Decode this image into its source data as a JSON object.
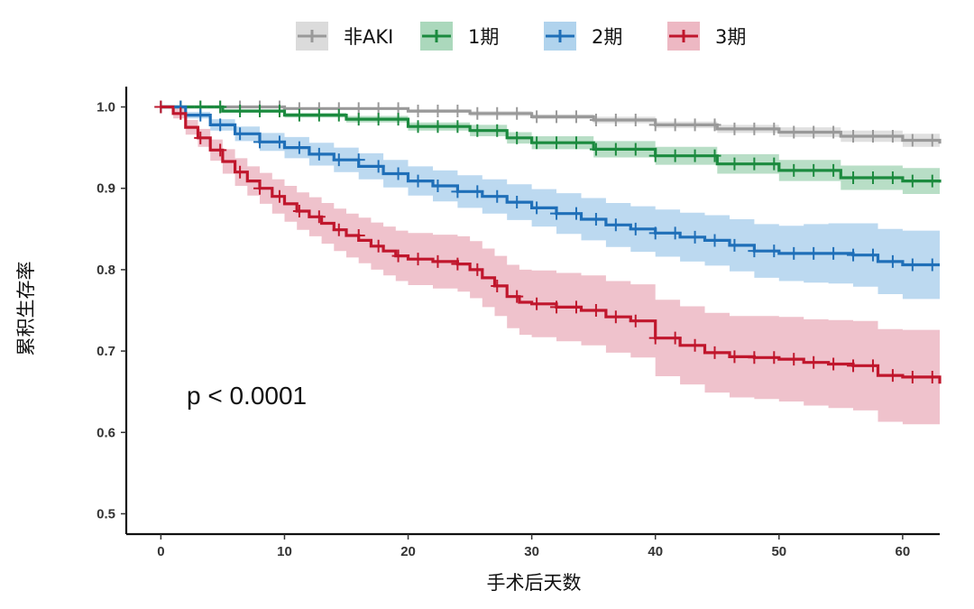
{
  "chart_data": {
    "type": "line",
    "xlabel": "手术后天数",
    "ylabel": "累积生存率",
    "xlim": [
      -2.8,
      63
    ],
    "ylim": [
      0.475,
      1.025
    ],
    "x_ticks": [
      "0",
      "10",
      "20",
      "30",
      "40",
      "50",
      "60"
    ],
    "y_ticks": [
      "0.5",
      "0.6",
      "0.7",
      "0.8",
      "0.9",
      "1.0"
    ],
    "legend_position": "top",
    "annotation": "p < 0.0001",
    "series": [
      {
        "name": "非AKI",
        "color": "#999999",
        "fill": "#cccccc",
        "x": [
          0,
          10,
          20,
          25,
          30,
          35,
          40,
          45,
          50,
          55,
          60,
          63
        ],
        "y": [
          1.0,
          0.998,
          0.995,
          0.992,
          0.988,
          0.984,
          0.978,
          0.973,
          0.969,
          0.964,
          0.959,
          0.955
        ],
        "lower": [
          1.0,
          0.997,
          0.993,
          0.989,
          0.985,
          0.98,
          0.974,
          0.968,
          0.963,
          0.957,
          0.951,
          0.946
        ],
        "upper": [
          1.0,
          0.999,
          0.997,
          0.995,
          0.991,
          0.988,
          0.982,
          0.978,
          0.975,
          0.971,
          0.967,
          0.964
        ]
      },
      {
        "name": "1期",
        "color": "#1b8a3e",
        "fill": "#88c8a0",
        "x": [
          0,
          5,
          10,
          15,
          20,
          25,
          28,
          30,
          35,
          40,
          45,
          50,
          55,
          60,
          63
        ],
        "y": [
          1.0,
          0.995,
          0.99,
          0.985,
          0.976,
          0.971,
          0.962,
          0.956,
          0.948,
          0.94,
          0.93,
          0.922,
          0.913,
          0.909,
          0.907
        ],
        "lower": [
          1.0,
          0.993,
          0.987,
          0.981,
          0.971,
          0.964,
          0.955,
          0.948,
          0.938,
          0.929,
          0.918,
          0.909,
          0.898,
          0.893,
          0.889
        ],
        "upper": [
          1.0,
          0.997,
          0.993,
          0.989,
          0.981,
          0.978,
          0.969,
          0.964,
          0.958,
          0.951,
          0.942,
          0.935,
          0.928,
          0.925,
          0.925
        ]
      },
      {
        "name": "2期",
        "color": "#1f6fb8",
        "fill": "#8fc0e6",
        "x": [
          0,
          2,
          4,
          6,
          8,
          10,
          12,
          14,
          16,
          18,
          20,
          22,
          24,
          26,
          28,
          30,
          32,
          34,
          36,
          38,
          40,
          42,
          44,
          46,
          48,
          50,
          52,
          54,
          56,
          58,
          60,
          63
        ],
        "y": [
          1.0,
          0.99,
          0.978,
          0.967,
          0.957,
          0.95,
          0.942,
          0.935,
          0.927,
          0.918,
          0.909,
          0.903,
          0.896,
          0.89,
          0.883,
          0.876,
          0.869,
          0.862,
          0.855,
          0.85,
          0.845,
          0.84,
          0.836,
          0.83,
          0.823,
          0.82,
          0.82,
          0.82,
          0.818,
          0.81,
          0.806,
          0.806
        ],
        "lower": [
          1.0,
          0.986,
          0.971,
          0.958,
          0.946,
          0.937,
          0.928,
          0.92,
          0.911,
          0.901,
          0.891,
          0.884,
          0.876,
          0.869,
          0.861,
          0.853,
          0.844,
          0.836,
          0.828,
          0.822,
          0.816,
          0.81,
          0.805,
          0.798,
          0.79,
          0.786,
          0.784,
          0.783,
          0.779,
          0.77,
          0.764,
          0.762
        ],
        "upper": [
          1.0,
          0.994,
          0.985,
          0.976,
          0.968,
          0.963,
          0.956,
          0.95,
          0.943,
          0.935,
          0.927,
          0.922,
          0.916,
          0.911,
          0.905,
          0.899,
          0.894,
          0.888,
          0.882,
          0.878,
          0.874,
          0.87,
          0.867,
          0.862,
          0.856,
          0.854,
          0.856,
          0.857,
          0.857,
          0.85,
          0.848,
          0.85
        ]
      },
      {
        "name": "3期",
        "color": "#c0162c",
        "fill": "#e59aaa",
        "x": [
          0,
          1,
          2,
          3,
          4,
          5,
          6,
          7,
          8,
          9,
          10,
          11,
          12,
          13,
          14,
          15,
          16,
          17,
          18,
          19,
          20,
          22,
          24,
          25,
          26,
          27,
          28,
          29,
          30,
          32,
          34,
          36,
          38,
          40,
          42,
          44,
          46,
          48,
          50,
          52,
          54,
          56,
          58,
          60,
          63
        ],
        "y": [
          1.0,
          0.992,
          0.975,
          0.962,
          0.947,
          0.933,
          0.92,
          0.909,
          0.9,
          0.89,
          0.881,
          0.872,
          0.865,
          0.857,
          0.849,
          0.842,
          0.836,
          0.829,
          0.823,
          0.817,
          0.813,
          0.81,
          0.807,
          0.8,
          0.79,
          0.78,
          0.767,
          0.76,
          0.758,
          0.754,
          0.75,
          0.742,
          0.737,
          0.716,
          0.707,
          0.698,
          0.693,
          0.692,
          0.69,
          0.686,
          0.684,
          0.682,
          0.67,
          0.668,
          0.66
        ],
        "lower": [
          1.0,
          0.986,
          0.966,
          0.951,
          0.934,
          0.918,
          0.903,
          0.891,
          0.881,
          0.869,
          0.859,
          0.849,
          0.841,
          0.832,
          0.823,
          0.815,
          0.808,
          0.8,
          0.793,
          0.786,
          0.781,
          0.777,
          0.773,
          0.765,
          0.754,
          0.743,
          0.728,
          0.72,
          0.717,
          0.712,
          0.707,
          0.698,
          0.692,
          0.669,
          0.659,
          0.649,
          0.643,
          0.641,
          0.638,
          0.633,
          0.63,
          0.627,
          0.613,
          0.61,
          0.6
        ]
      }
    ]
  }
}
